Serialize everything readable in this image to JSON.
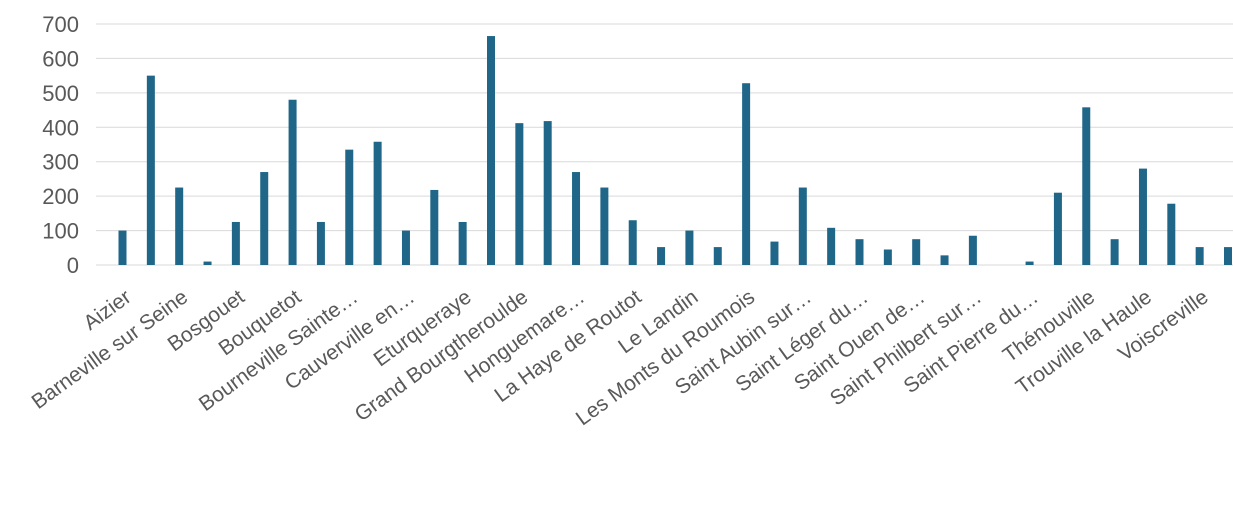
{
  "chart_data": {
    "type": "bar",
    "title": "",
    "xlabel": "",
    "ylabel": "",
    "ylim": [
      0,
      700
    ],
    "yticks": [
      0,
      100,
      200,
      300,
      400,
      500,
      600,
      700
    ],
    "grid": true,
    "legend": "none",
    "bar_color": "#1F6688",
    "categories": [
      "Aizier",
      "",
      "Barneville sur Seine",
      "",
      "Bosgouet",
      "",
      "Bouquetot",
      "",
      "Bourneville Sainte…",
      "",
      "Cauverville en…",
      "",
      "Eturqueraye",
      "",
      "Grand Bourgtheroulde",
      "",
      "Honguemare…",
      "",
      "La Haye de Routot",
      "",
      "Le Landin",
      "",
      "Les Monts du Roumois",
      "",
      "Saint Aubin sur…",
      "",
      "Saint Léger du…",
      "",
      "Saint Ouen de…",
      "",
      "Saint Philbert sur…",
      "",
      "Saint Pierre du…",
      "",
      "Thénouville",
      "",
      "Trouville la Haule",
      "",
      "Voiscreville",
      ""
    ],
    "values": [
      100,
      550,
      225,
      10,
      125,
      270,
      480,
      125,
      335,
      358,
      100,
      218,
      125,
      665,
      412,
      418,
      270,
      225,
      130,
      52,
      100,
      52,
      528,
      68,
      225,
      108,
      75,
      45,
      75,
      28,
      85,
      0,
      10,
      210,
      458,
      75,
      280,
      178,
      52,
      52
    ]
  }
}
